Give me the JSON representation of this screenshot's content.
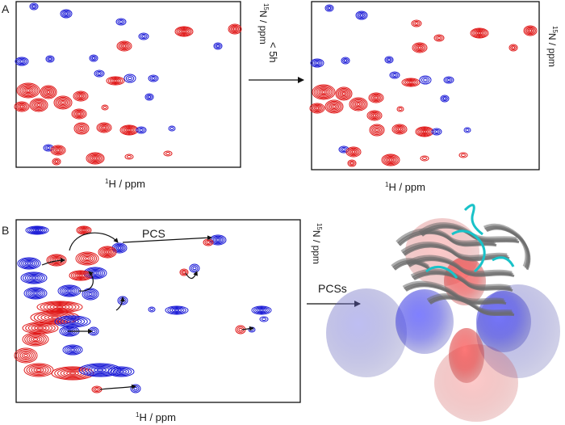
{
  "panels": {
    "a": {
      "letter": "A",
      "left_xlabel_sup": "1",
      "left_xlabel": "H / ppm",
      "left_ylabel_sup": "15",
      "left_ylabel": "N / ppm",
      "arrow_label": "< 5h",
      "right_xlabel_sup": "1",
      "right_xlabel": "H / ppm",
      "right_ylabel_sup": "15",
      "right_ylabel": "N / ppm"
    },
    "b": {
      "letter": "B",
      "pcs_label": "PCS",
      "xlabel_sup": "1",
      "xlabel": "H / ppm",
      "ylabel_sup": "15",
      "ylabel": "N / ppm",
      "arrow_label": "PCSs"
    }
  },
  "colors": {
    "spectrum_red": "#e01818",
    "spectrum_blue": "#1a1ad6",
    "frame": "#111111",
    "protein_gray": "#6b6b6b",
    "protein_cyan": "#19c2c8",
    "lobe_red": "#e03030",
    "lobe_blue": "#3a3ae0"
  },
  "icons": {
    "process_arrow": "arrow-right",
    "shift_arrow": "curved-arrow"
  }
}
